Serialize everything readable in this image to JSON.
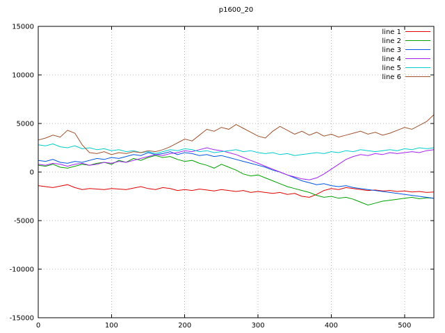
{
  "chart_data": {
    "type": "line",
    "title": "p1600_20",
    "xlabel": "",
    "ylabel": "",
    "xlim": [
      0,
      540
    ],
    "ylim": [
      -15000,
      15000
    ],
    "xticks": [
      0,
      100,
      200,
      300,
      400,
      500
    ],
    "yticks": [
      -15000,
      -10000,
      -5000,
      0,
      5000,
      10000,
      15000
    ],
    "grid": true,
    "grid_style": "dotted",
    "grid_color": "#b8b8b8",
    "border_color": "#000000",
    "background_color": "#ffffff",
    "legend_position": "top-right-inside",
    "x_start": 0,
    "x_step": 10,
    "series": [
      {
        "name": "line 1",
        "color": "#e00000",
        "values": [
          -1400,
          -1500,
          -1600,
          -1450,
          -1300,
          -1600,
          -1800,
          -1700,
          -1750,
          -1800,
          -1700,
          -1750,
          -1800,
          -1650,
          -1500,
          -1700,
          -1800,
          -1600,
          -1700,
          -1900,
          -1800,
          -1900,
          -1750,
          -1850,
          -1950,
          -1800,
          -1900,
          -2000,
          -1900,
          -2100,
          -2000,
          -2100,
          -2200,
          -2100,
          -2300,
          -2200,
          -2500,
          -2600,
          -2300,
          -1900,
          -1700,
          -1800,
          -1600,
          -1700,
          -1800,
          -1900,
          -1850,
          -1950,
          -1900,
          -2000,
          -1950,
          -2050,
          -2000,
          -2100,
          -2050
        ]
      },
      {
        "name": "line 2",
        "color": "#00a000",
        "values": [
          700,
          600,
          800,
          500,
          400,
          600,
          800,
          700,
          900,
          1000,
          800,
          1200,
          1000,
          1400,
          1200,
          1500,
          1700,
          1500,
          1600,
          1300,
          1100,
          1200,
          900,
          700,
          400,
          800,
          500,
          200,
          -200,
          -400,
          -300,
          -600,
          -900,
          -1200,
          -1500,
          -1700,
          -1900,
          -2100,
          -2400,
          -2600,
          -2500,
          -2700,
          -2600,
          -2800,
          -3100,
          -3400,
          -3200,
          -3000,
          -2900,
          -2800,
          -2700,
          -2600,
          -2750,
          -2650,
          -2700
        ]
      },
      {
        "name": "line 3",
        "color": "#0055e0",
        "values": [
          1200,
          1100,
          1300,
          1000,
          900,
          1100,
          1000,
          1200,
          1400,
          1300,
          1500,
          1400,
          1600,
          1800,
          1700,
          2000,
          1800,
          1900,
          2100,
          1800,
          2000,
          1900,
          1700,
          1800,
          1600,
          1700,
          1500,
          1300,
          1100,
          900,
          700,
          500,
          200,
          0,
          -300,
          -600,
          -900,
          -1100,
          -1300,
          -1200,
          -1400,
          -1500,
          -1400,
          -1600,
          -1700,
          -1800,
          -1900,
          -2000,
          -2100,
          -2200,
          -2300,
          -2400,
          -2500,
          -2600,
          -2700
        ]
      },
      {
        "name": "line 4",
        "color": "#a020f0",
        "values": [
          800,
          700,
          900,
          800,
          600,
          800,
          900,
          700,
          800,
          1000,
          900,
          1100,
          1000,
          1200,
          1400,
          1600,
          1800,
          1700,
          1900,
          2000,
          2200,
          2100,
          2300,
          2500,
          2300,
          2200,
          2000,
          1800,
          1500,
          1200,
          900,
          600,
          300,
          0,
          -300,
          -500,
          -700,
          -800,
          -600,
          -200,
          300,
          800,
          1300,
          1600,
          1800,
          1700,
          1900,
          1800,
          2000,
          1900,
          2000,
          2100,
          2000,
          2200,
          2300
        ]
      },
      {
        "name": "line 5",
        "color": "#00cccc",
        "values": [
          2800,
          2700,
          2900,
          2600,
          2500,
          2700,
          2400,
          2500,
          2300,
          2400,
          2200,
          2300,
          2100,
          2200,
          2000,
          2100,
          1900,
          2100,
          2300,
          2200,
          2400,
          2300,
          2100,
          2200,
          2000,
          2100,
          2200,
          2300,
          2100,
          2200,
          2000,
          1900,
          2000,
          1800,
          1900,
          1700,
          1800,
          1900,
          2000,
          1900,
          2100,
          2000,
          2200,
          2100,
          2300,
          2200,
          2100,
          2200,
          2300,
          2200,
          2400,
          2300,
          2500,
          2400,
          2500
        ]
      },
      {
        "name": "line 6",
        "color": "#a0522d",
        "values": [
          3300,
          3500,
          3800,
          3600,
          4300,
          4000,
          2800,
          2000,
          1900,
          2100,
          1800,
          2000,
          1900,
          2100,
          2000,
          2200,
          2100,
          2300,
          2600,
          3000,
          3400,
          3200,
          3800,
          4400,
          4200,
          4600,
          4400,
          4900,
          4500,
          4100,
          3700,
          3500,
          4200,
          4700,
          4300,
          3900,
          4200,
          3800,
          4100,
          3700,
          3900,
          3600,
          3800,
          4000,
          4200,
          3900,
          4100,
          3800,
          4000,
          4300,
          4600,
          4400,
          4800,
          5200,
          5900
        ]
      }
    ]
  }
}
